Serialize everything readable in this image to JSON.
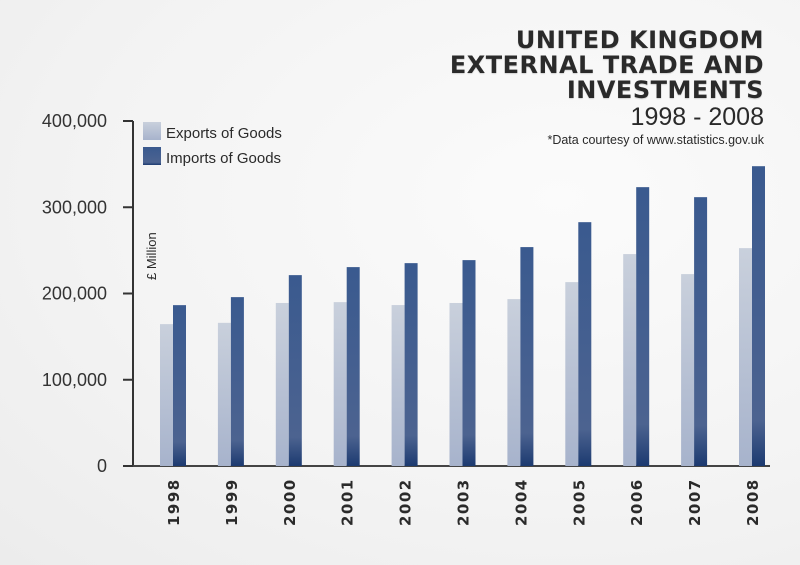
{
  "chart_data": {
    "type": "bar",
    "title": "UNITED KINGDOM EXTERNAL TRADE AND INVESTMENTS",
    "title_lines": [
      "UNITED KINGDOM",
      "EXTERNAL TRADE AND",
      "INVESTMENTS"
    ],
    "subtitle": "1998 - 2008",
    "source_note": "*Data courtesy of www.statistics.gov.uk",
    "xlabel": "",
    "ylabel": "£ Million",
    "ylim": [
      0,
      400000
    ],
    "yticks": [
      0,
      100000,
      200000,
      300000,
      400000
    ],
    "ytick_labels": [
      "0",
      "100,000",
      "200,000",
      "300,000",
      "400,000"
    ],
    "categories": [
      "1998",
      "1999",
      "2000",
      "2001",
      "2002",
      "2003",
      "2004",
      "2005",
      "2006",
      "2007",
      "2008"
    ],
    "series": [
      {
        "name": "Exports of Goods",
        "color_top": "#c9d0dc",
        "color_bottom": "#a7b3cc",
        "values": [
          164500,
          166000,
          189000,
          190000,
          186600,
          189000,
          193500,
          213200,
          245700,
          222500,
          252600
        ]
      },
      {
        "name": "Imports of Goods",
        "color_top": "#3a5a8f",
        "color_bottom": "#1c3a70",
        "values": [
          186500,
          195800,
          221300,
          230600,
          235200,
          238700,
          253800,
          282700,
          323300,
          311700,
          347600
        ]
      }
    ],
    "legend_position": "top-left",
    "grid": false,
    "zero_label_color": "#c0283c"
  }
}
